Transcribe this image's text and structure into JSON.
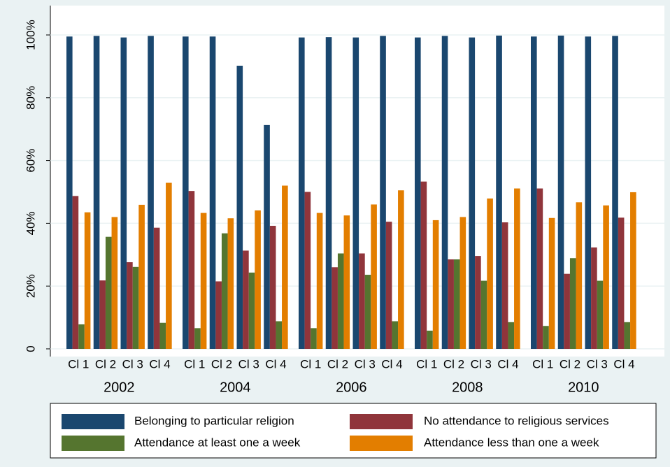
{
  "chart_data": {
    "type": "bar",
    "groups": [
      "2002",
      "2004",
      "2006",
      "2008",
      "2010"
    ],
    "categories": [
      "Cl 1",
      "Cl 2",
      "Cl 3",
      "Cl 4",
      "Cl 1",
      "Cl 2",
      "Cl 3",
      "Cl 4",
      "Cl 1",
      "Cl 2",
      "Cl 3",
      "Cl 4",
      "Cl 1",
      "Cl 2",
      "Cl 3",
      "Cl 4",
      "Cl 1",
      "Cl 2",
      "Cl 3",
      "Cl 4"
    ],
    "series": [
      {
        "name": "Belonging to particular religion",
        "color": "#1a476f",
        "values": [
          99.5,
          99.7,
          99.2,
          99.7,
          99.5,
          99.5,
          90.2,
          71.3,
          99.2,
          99.3,
          99.2,
          99.7,
          99.2,
          99.7,
          99.2,
          99.8,
          99.5,
          99.8,
          99.5,
          99.7
        ]
      },
      {
        "name": "No attendance to religious services",
        "color": "#90353b",
        "values": [
          48.7,
          21.8,
          27.6,
          38.6,
          50.3,
          21.5,
          31.3,
          39.2,
          50.0,
          26.0,
          30.4,
          40.5,
          53.3,
          28.5,
          29.6,
          40.3,
          51.1,
          23.9,
          32.3,
          41.8
        ]
      },
      {
        "name": "Attendance at least one a week",
        "color": "#55752f",
        "values": [
          7.8,
          35.7,
          26.1,
          8.3,
          6.6,
          36.8,
          24.3,
          8.8,
          6.6,
          30.4,
          23.6,
          8.8,
          5.8,
          28.5,
          21.7,
          8.5,
          7.3,
          28.9,
          21.7,
          8.5
        ]
      },
      {
        "name": "Attendance less than one a week",
        "color": "#e37e00",
        "values": [
          43.5,
          42.0,
          45.9,
          52.9,
          43.3,
          41.6,
          44.1,
          52.0,
          43.3,
          42.5,
          46.0,
          50.5,
          41.0,
          42.0,
          47.9,
          51.1,
          41.7,
          46.7,
          45.7,
          49.9
        ]
      }
    ],
    "ylim": [
      0,
      100
    ],
    "yticks": [
      0,
      {
        "value": 20,
        "label": "20%"
      },
      {
        "value": 40,
        "label": "40%"
      },
      {
        "value": 60,
        "label": "60%"
      },
      {
        "value": 80,
        "label": "80%"
      },
      {
        "value": 100,
        "label": "100%"
      }
    ],
    "grid": true,
    "legend": "bottom"
  }
}
